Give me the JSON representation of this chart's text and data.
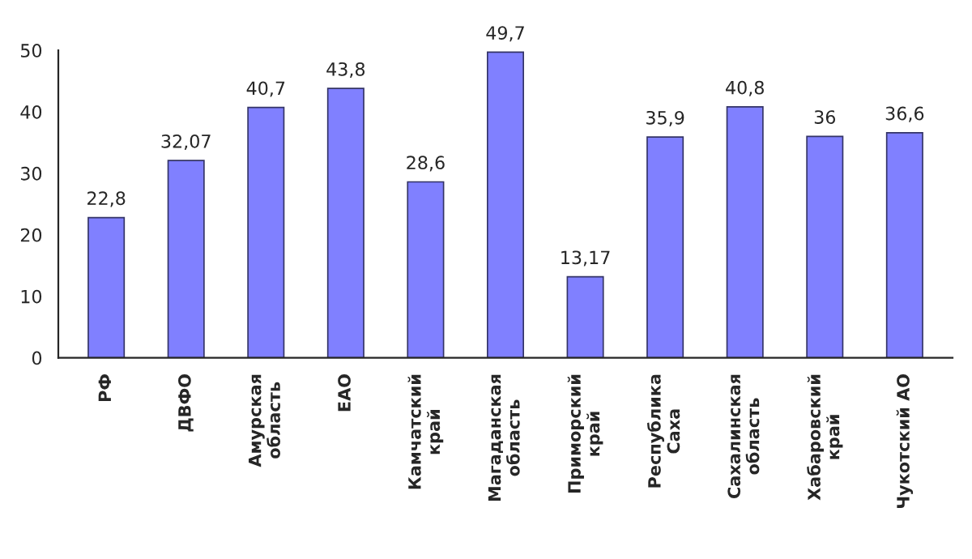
{
  "chart_data": {
    "type": "bar",
    "categories": [
      "РФ",
      "ДВФО",
      "Амурская\nобласть",
      "ЕАО",
      "Камчатский\nкрай",
      "Магаданская\nобласть",
      "Приморский\nкрай",
      "Республика\nСаха",
      "Сахалинская\nобласть",
      "Хабаровский\nкрай",
      "Чукотский АО"
    ],
    "values": [
      22.8,
      32.07,
      40.7,
      43.8,
      28.6,
      49.7,
      13.17,
      35.9,
      40.8,
      36,
      36.6
    ],
    "value_labels": [
      "22,8",
      "32,07",
      "40,7",
      "43,8",
      "28,6",
      "49,7",
      "13,17",
      "35,9",
      "40,8",
      "36",
      "36,6"
    ],
    "color": "#8080ff",
    "ylim": [
      0,
      50
    ],
    "yticks": [
      0,
      10,
      20,
      30,
      40,
      50
    ],
    "grid": false,
    "legend": false
  }
}
